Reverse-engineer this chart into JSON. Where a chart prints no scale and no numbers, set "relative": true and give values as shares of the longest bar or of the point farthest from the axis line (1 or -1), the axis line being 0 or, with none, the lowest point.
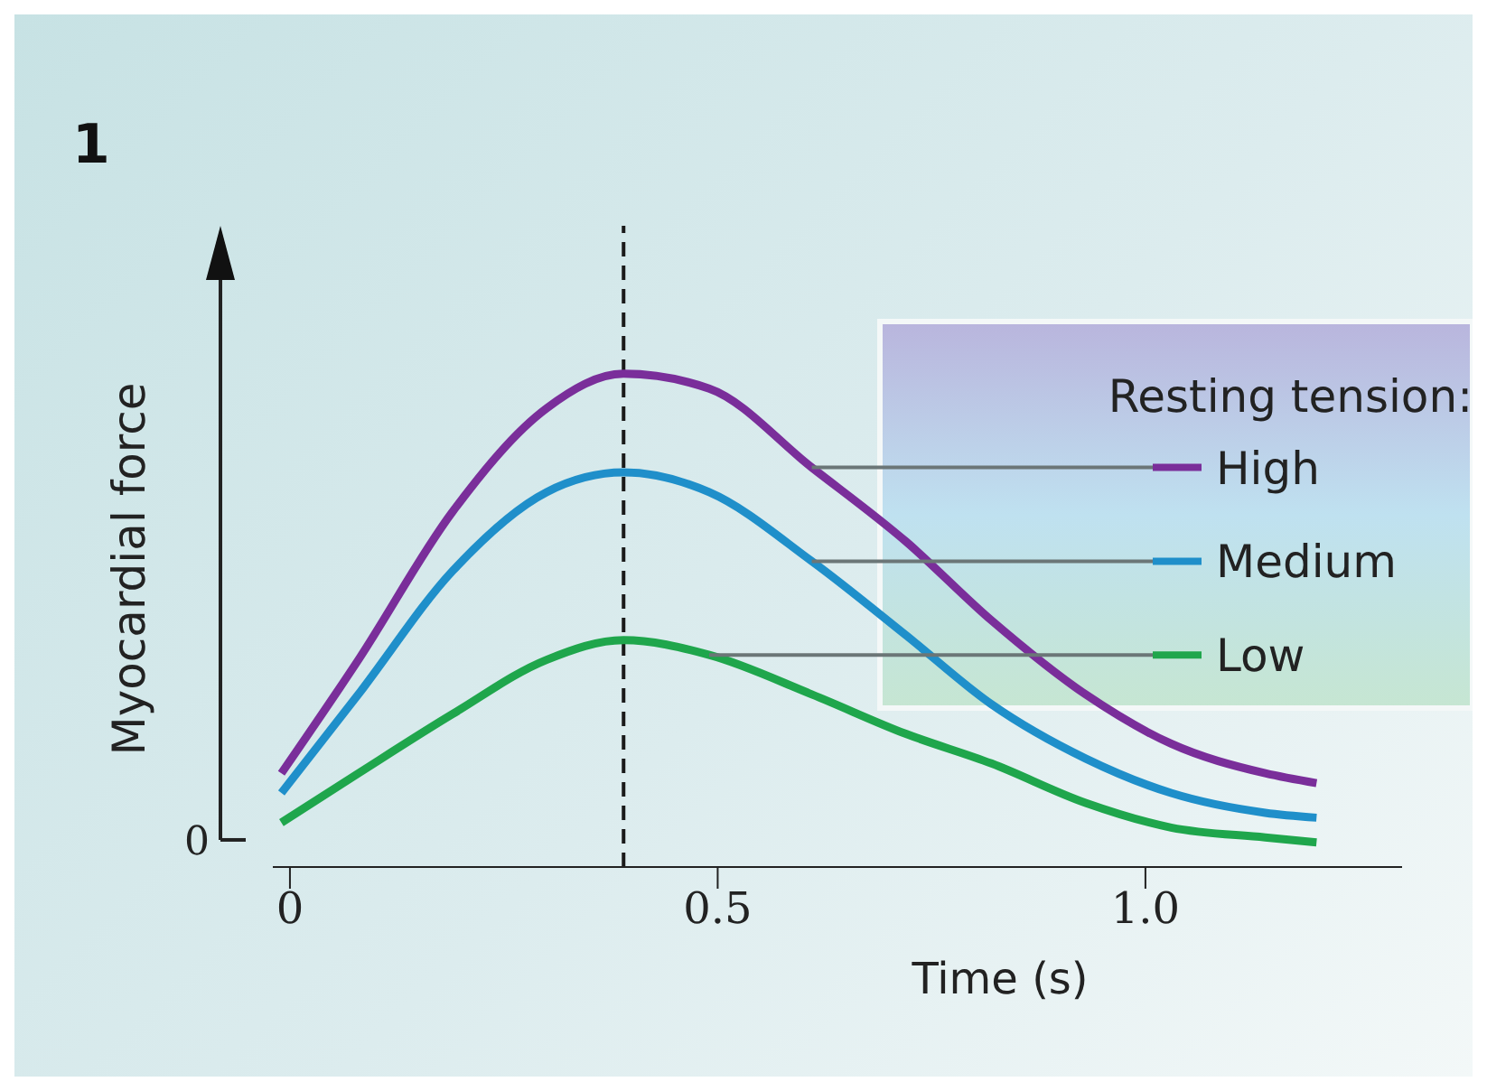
{
  "chart_data": {
    "type": "line",
    "title": "1",
    "xlabel": "Time (s)",
    "ylabel": "Myocardial force",
    "legend_title": "Resting tension:",
    "relative": true,
    "legend": "right",
    "marker": "none",
    "line_style": "solid",
    "annotations": [
      "0"
    ],
    "x": [
      -0.01,
      0.08,
      0.19,
      0.3,
      0.39,
      0.49,
      0.61,
      0.72,
      0.82,
      0.93,
      1.03,
      1.14,
      1.2
    ],
    "xlim": [
      -0.02,
      1.3
    ],
    "xticks": [
      0,
      0.5,
      {
        "value": 1,
        "label": "1.0"
      }
    ],
    "ref_lines": [
      {
        "axis": "x",
        "value": 0.39,
        "line_style": "dashed",
        "color": "#1a1a1a"
      }
    ],
    "series": [
      {
        "name": "High",
        "color": "#7a2e9a",
        "values": [
          0.19,
          0.42,
          0.72,
          0.93,
          1.0,
          0.97,
          0.81,
          0.66,
          0.5,
          0.35,
          0.25,
          0.19,
          0.17
        ]
      },
      {
        "name": "Medium",
        "color": "#1f8fca",
        "values": [
          0.15,
          0.35,
          0.6,
          0.76,
          0.8,
          0.76,
          0.62,
          0.47,
          0.33,
          0.22,
          0.15,
          0.11,
          0.1
        ]
      },
      {
        "name": "Low",
        "color": "#1fa64c",
        "values": [
          0.09,
          0.19,
          0.31,
          0.42,
          0.46,
          0.43,
          0.35,
          0.27,
          0.21,
          0.13,
          0.08,
          0.06,
          0.05
        ]
      }
    ]
  }
}
